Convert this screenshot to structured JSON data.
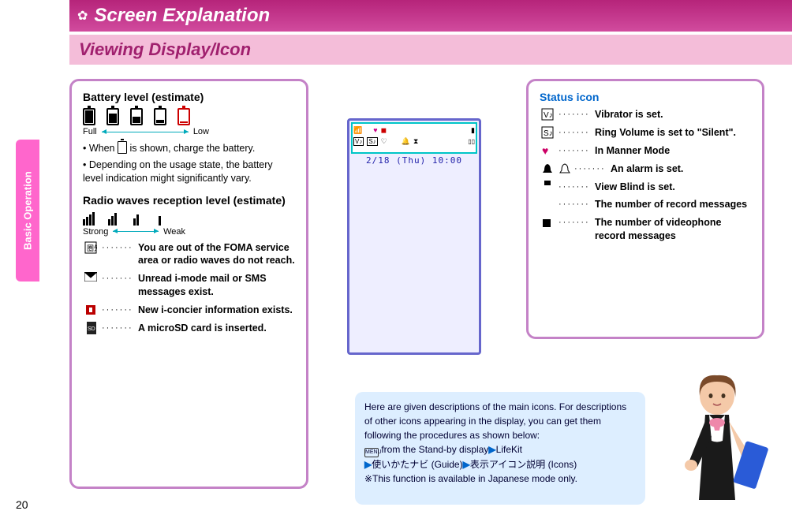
{
  "header": {
    "title": "Screen Explanation"
  },
  "subhead": {
    "title": "Viewing Display/Icon"
  },
  "side": {
    "label": "Basic Operation",
    "pagenum": "20"
  },
  "left_box": {
    "battery_title": "Battery level (estimate)",
    "batt_levels": [
      100,
      75,
      50,
      25,
      10
    ],
    "full_label": "Full",
    "low_label": "Low",
    "note1a": "• When ",
    "note1b": " is shown, charge the battery.",
    "note2": "• Depending on the usage state, the battery level indication might significantly vary.",
    "radio_title": "Radio waves reception level (estimate)",
    "sig_levels": [
      4,
      3,
      2,
      1
    ],
    "strong_label": "Strong",
    "weak_label": "Weak",
    "items": [
      {
        "icon": "out-of-area-icon",
        "text": "You are out of the FOMA service area or radio waves do not reach."
      },
      {
        "icon": "mail-icon",
        "text": "Unread i-mode mail or SMS messages exist."
      },
      {
        "icon": "i-concier-icon",
        "text": "New i-concier information exists."
      },
      {
        "icon": "microsd-icon",
        "text": "A microSD card is inserted."
      }
    ]
  },
  "right_box": {
    "title": "Status icon",
    "items": [
      {
        "icon": "vibrator-icon",
        "text": "Vibrator is set."
      },
      {
        "icon": "silent-icon",
        "text": "Ring Volume is set to \"Silent\"."
      },
      {
        "icon": "manner-icon",
        "text": "In Manner Mode"
      },
      {
        "icon": "alarm-icon",
        "text": "An alarm is set.",
        "double": true
      },
      {
        "icon": "view-blind-icon",
        "text": "View Blind is set."
      },
      {
        "icon": "record-msg-icon",
        "text": "The number of record messages"
      },
      {
        "icon": "video-record-icon",
        "text": "The number of videophone record messages"
      }
    ]
  },
  "phone": {
    "time": "2/18 (Thu) 10:00"
  },
  "tip": {
    "l1": "Here are given descriptions of the main icons. For descriptions of other icons appearing in the display, you can get them following the procedures as shown below:",
    "menu": "MENU",
    "l2a": " from the Stand-by display",
    "l2b": "LifeKit",
    "l3a": "使いかたナビ (Guide)",
    "l3b": "表示アイコン説明 (Icons)",
    "l4": "※This function is available in Japanese mode only."
  }
}
